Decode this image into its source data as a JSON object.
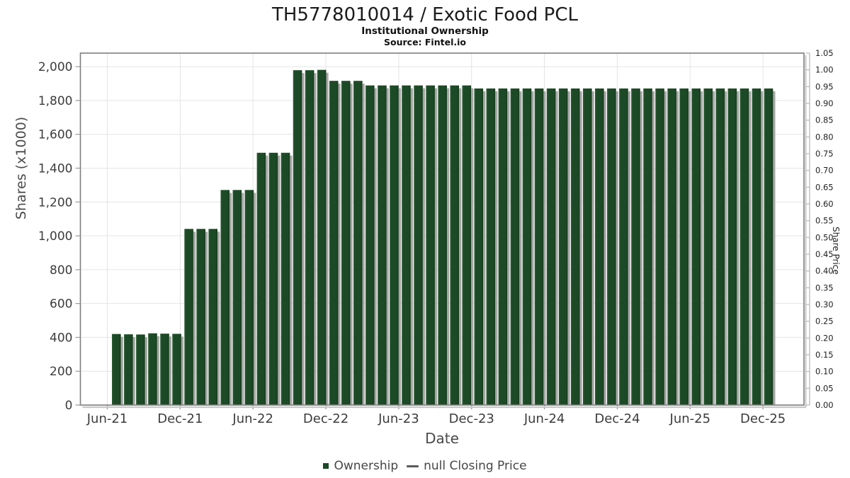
{
  "header": {
    "title": "TH5778010014 / Exotic Food PCL",
    "subtitle": "Institutional Ownership",
    "source": "Source: Fintel.io"
  },
  "chart_data": {
    "type": "bar",
    "title": "TH5778010014 / Exotic Food PCL",
    "subtitle": "Institutional Ownership",
    "source": "Source: Fintel.io",
    "xlabel": "Date",
    "ylabel_left": "Shares (x1000)",
    "ylabel_right": "Share Price",
    "ylim_left": [
      0,
      2080
    ],
    "ylim_right": [
      0,
      1.05
    ],
    "grid": true,
    "legend_position": "bottom",
    "categories": [
      "Jun-21",
      "Jul-21",
      "Aug-21",
      "Sep-21",
      "Oct-21",
      "Nov-21",
      "Dec-21",
      "Jan-22",
      "Feb-22",
      "Mar-22",
      "Apr-22",
      "May-22",
      "Jun-22",
      "Jul-22",
      "Aug-22",
      "Sep-22",
      "Oct-22",
      "Nov-22",
      "Dec-22",
      "Jan-23",
      "Feb-23",
      "Mar-23",
      "Apr-23",
      "May-23",
      "Jun-23",
      "Jul-23",
      "Aug-23",
      "Sep-23",
      "Oct-23",
      "Nov-23",
      "Dec-23",
      "Jan-24",
      "Feb-24",
      "Mar-24",
      "Apr-24",
      "May-24",
      "Jun-24",
      "Jul-24",
      "Aug-24",
      "Sep-24",
      "Oct-24",
      "Nov-24",
      "Dec-24",
      "Jan-25",
      "Feb-25",
      "Mar-25",
      "Apr-25",
      "May-25",
      "Jun-25",
      "Jul-25",
      "Aug-25",
      "Sep-25",
      "Oct-25",
      "Nov-25",
      "Dec-25"
    ],
    "series": [
      {
        "name": "Ownership",
        "type": "column",
        "units": "shares x1000",
        "values": [
          420,
          418,
          417,
          424,
          422,
          421,
          1041,
          1041,
          1041,
          1271,
          1271,
          1271,
          1491,
          1491,
          1491,
          1979,
          1979,
          1981,
          1916,
          1916,
          1916,
          1889,
          1889,
          1889,
          1889,
          1889,
          1889,
          1889,
          1889,
          1889,
          1871,
          1871,
          1871,
          1871,
          1871,
          1871,
          1871,
          1871,
          1871,
          1871,
          1871,
          1871,
          1871,
          1871,
          1871,
          1871,
          1871,
          1871,
          1871,
          1871,
          1871,
          1871,
          1871,
          1871,
          1871
        ]
      }
    ],
    "x_tick_labels": [
      "Jun-21",
      "Dec-21",
      "Jun-22",
      "Dec-22",
      "Jun-23",
      "Dec-23",
      "Jun-24",
      "Dec-24",
      "Jun-25",
      "Dec-25"
    ],
    "y_left_tick_labels": [
      "0",
      "200",
      "400",
      "600",
      "800",
      "1,000",
      "1,200",
      "1,400",
      "1,600",
      "1,800",
      "2,000"
    ],
    "y_right_tick_labels": [
      "0.00",
      "0.05",
      "0.10",
      "0.15",
      "0.20",
      "0.25",
      "0.30",
      "0.35",
      "0.40",
      "0.45",
      "0.50",
      "0.55",
      "0.60",
      "0.65",
      "0.70",
      "0.75",
      "0.80",
      "0.85",
      "0.90",
      "0.95",
      "1.00",
      "1.05"
    ],
    "colors": {
      "bar": "#1d4a26",
      "bar_light": "#2f6039",
      "bar_dark": "#143a1b",
      "bar_shadow": "#a6a6a6",
      "grid": "#e4e4e4",
      "frame": "#7f7f7f",
      "frame_shadow": "#c8c8c8",
      "tick": "#9a9a9a",
      "right_axis": "#b3b3b3",
      "tick_label_left": "#3c3c3c",
      "tick_label_right": "#1f1f1f",
      "legend_line": "#5a5a5a"
    }
  },
  "legend": {
    "ownership": "Ownership",
    "price": "null Closing Price"
  }
}
